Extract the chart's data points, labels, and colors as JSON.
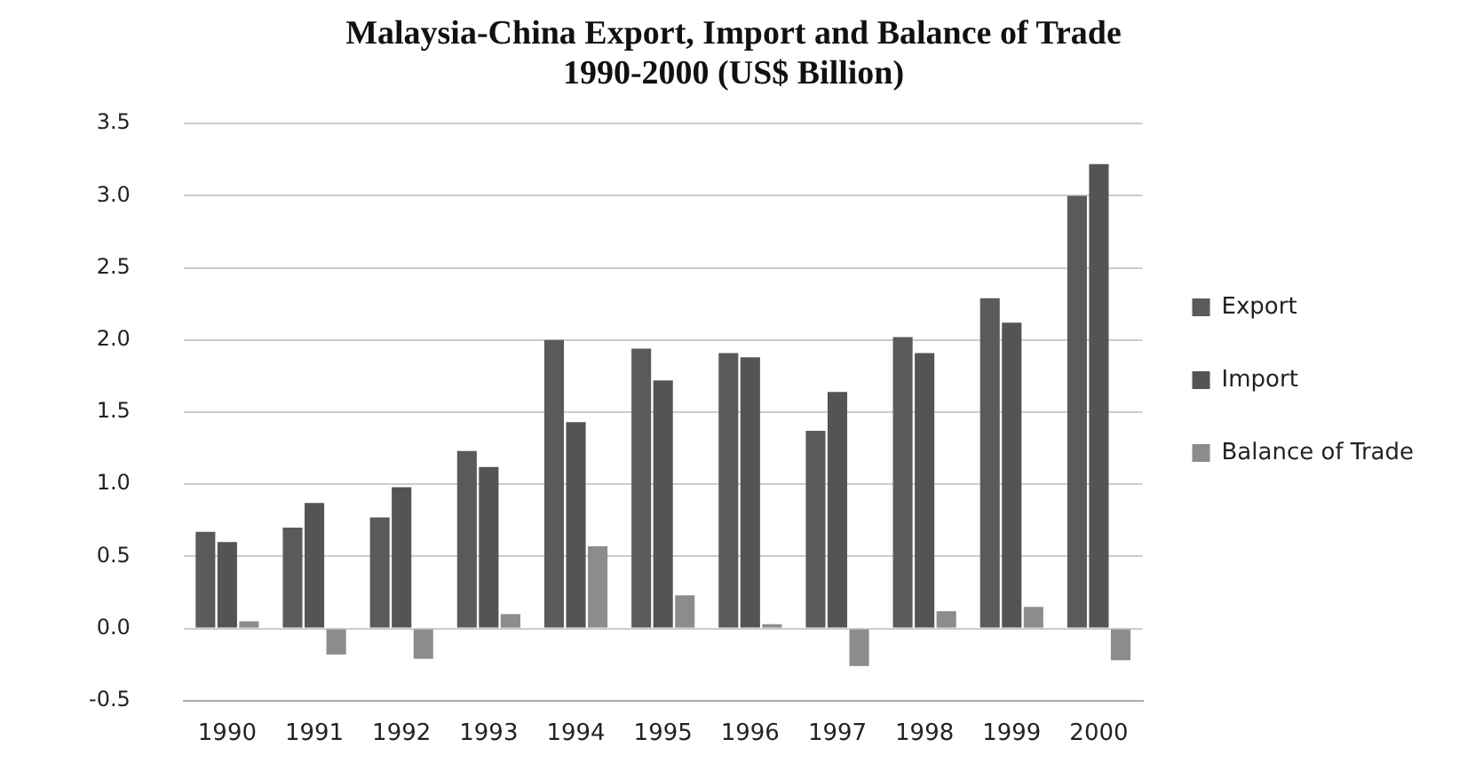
{
  "chart_data": {
    "type": "bar",
    "title": [
      "Malaysia-China Export, Import and Balance of Trade",
      "1990-2000 (US$ Billion)"
    ],
    "categories": [
      "1990",
      "1991",
      "1992",
      "1993",
      "1994",
      "1995",
      "1996",
      "1997",
      "1998",
      "1999",
      "2000"
    ],
    "series": [
      {
        "name": "Export",
        "color": "#5a5a5a",
        "values": [
          0.67,
          0.7,
          0.77,
          1.23,
          2.0,
          1.94,
          1.91,
          1.37,
          2.02,
          2.29,
          3.0
        ]
      },
      {
        "name": "Import",
        "color": "#545454",
        "values": [
          0.6,
          0.87,
          0.98,
          1.12,
          1.43,
          1.72,
          1.88,
          1.64,
          1.91,
          2.12,
          3.22
        ]
      },
      {
        "name": "Balance of Trade",
        "color": "#8c8c8c",
        "values": [
          0.05,
          -0.18,
          -0.21,
          0.1,
          0.57,
          0.23,
          0.03,
          -0.26,
          0.12,
          0.15,
          -0.22
        ]
      }
    ],
    "ylim": [
      -0.5,
      3.5
    ],
    "yticks": [
      {
        "value": -0.5,
        "label": "-0.5"
      },
      {
        "value": 0,
        "label": "0.0"
      },
      {
        "value": 0.5,
        "label": "0.5"
      },
      {
        "value": 1,
        "label": "1.0"
      },
      {
        "value": 1.5,
        "label": "1.5"
      },
      {
        "value": 2,
        "label": "2.0"
      },
      {
        "value": 2.5,
        "label": "2.5"
      },
      {
        "value": 3,
        "label": "3.0"
      },
      {
        "value": 3.5,
        "label": "3.5"
      }
    ],
    "grid": "y",
    "legend": "right"
  }
}
